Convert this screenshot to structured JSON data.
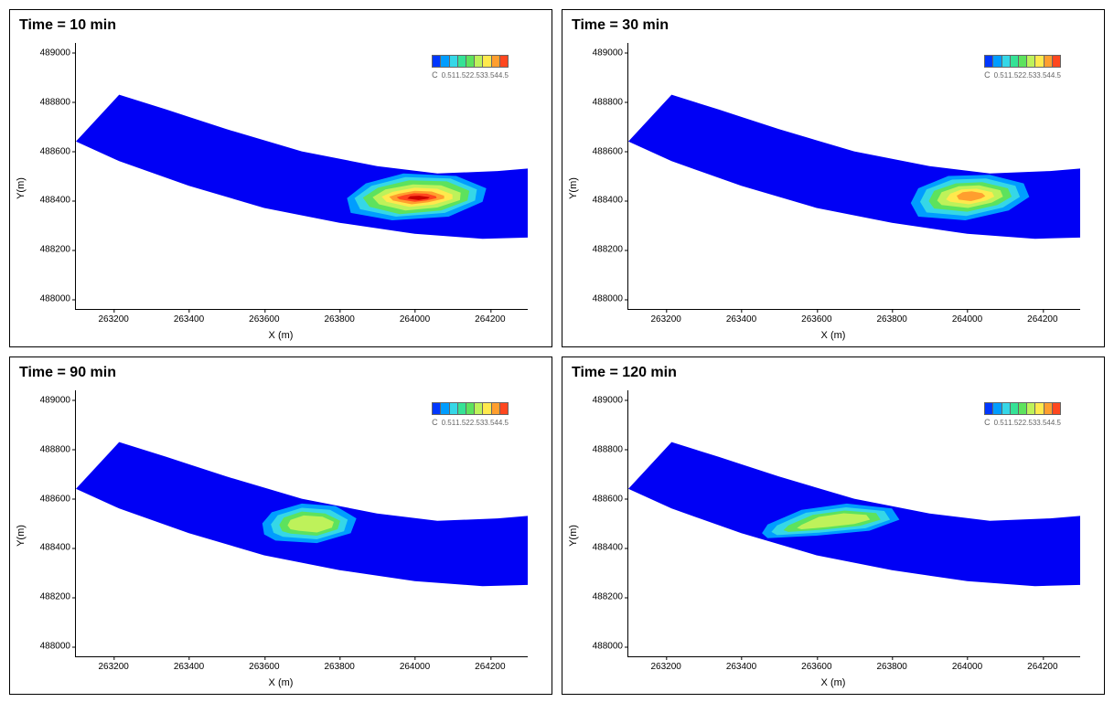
{
  "grid_layout": {
    "rows": 2,
    "cols": 2
  },
  "panels": [
    {
      "id": "p0",
      "time_label": "Time = 10 min"
    },
    {
      "id": "p1",
      "time_label": "Time = 30 min"
    },
    {
      "id": "p2",
      "time_label": "Time = 90 min"
    },
    {
      "id": "p3",
      "time_label": "Time = 120 min"
    }
  ],
  "axes": {
    "xlabel": "X (m)",
    "ylabel": "Y(m)",
    "xlim": [
      263100,
      264300
    ],
    "ylim": [
      487960,
      489040
    ],
    "xticks": [
      263200,
      263400,
      263600,
      263800,
      264000,
      264200
    ],
    "yticks": [
      488000,
      488200,
      488400,
      488600,
      488800,
      489000
    ]
  },
  "river_band": {
    "fill": "#0000f5",
    "points": [
      [
        263100,
        488640
      ],
      [
        263215,
        488830
      ],
      [
        263340,
        488770
      ],
      [
        263500,
        488690
      ],
      [
        263700,
        488600
      ],
      [
        263900,
        488540
      ],
      [
        264060,
        488510
      ],
      [
        264220,
        488520
      ],
      [
        264300,
        488530
      ],
      [
        264300,
        488250
      ],
      [
        264180,
        488245
      ],
      [
        264000,
        488265
      ],
      [
        263800,
        488310
      ],
      [
        263600,
        488370
      ],
      [
        263400,
        488460
      ],
      [
        263215,
        488560
      ],
      [
        263100,
        488640
      ]
    ]
  },
  "legend": {
    "label": "C",
    "values": [
      "0.5",
      "1",
      "1.5",
      "2",
      "2.5",
      "3",
      "3.5",
      "4",
      "4.5"
    ],
    "colors": [
      "#0037ff",
      "#009dff",
      "#35d7e7",
      "#35e296",
      "#5de25d",
      "#bef25a",
      "#ffe94d",
      "#ff9e2e",
      "#ff471f"
    ]
  },
  "hotspots": {
    "p0": [
      {
        "c": "#009dff",
        "points": [
          [
            263830,
            488350
          ],
          [
            263940,
            488320
          ],
          [
            264090,
            488335
          ],
          [
            264180,
            488395
          ],
          [
            264190,
            488450
          ],
          [
            264110,
            488500
          ],
          [
            263970,
            488510
          ],
          [
            263870,
            488470
          ],
          [
            263820,
            488410
          ]
        ]
      },
      {
        "c": "#35d7e7",
        "points": [
          [
            263855,
            488365
          ],
          [
            263950,
            488335
          ],
          [
            264080,
            488350
          ],
          [
            264160,
            488400
          ],
          [
            264165,
            488445
          ],
          [
            264095,
            488490
          ],
          [
            263975,
            488495
          ],
          [
            263885,
            488460
          ],
          [
            263840,
            488410
          ]
        ]
      },
      {
        "c": "#5de25d",
        "points": [
          [
            263880,
            488375
          ],
          [
            263960,
            488345
          ],
          [
            264070,
            488360
          ],
          [
            264140,
            488400
          ],
          [
            264145,
            488440
          ],
          [
            264085,
            488478
          ],
          [
            263985,
            488482
          ],
          [
            263902,
            488452
          ],
          [
            263862,
            488412
          ]
        ]
      },
      {
        "c": "#bef25a",
        "points": [
          [
            263905,
            488385
          ],
          [
            263975,
            488360
          ],
          [
            264060,
            488372
          ],
          [
            264120,
            488402
          ],
          [
            264122,
            488432
          ],
          [
            264070,
            488462
          ],
          [
            263995,
            488466
          ],
          [
            263922,
            488445
          ],
          [
            263888,
            488414
          ]
        ]
      },
      {
        "c": "#ffe94d",
        "points": [
          [
            263925,
            488395
          ],
          [
            263985,
            488375
          ],
          [
            264050,
            488384
          ],
          [
            264100,
            488406
          ],
          [
            264100,
            488425
          ],
          [
            264060,
            488448
          ],
          [
            264000,
            488452
          ],
          [
            263942,
            488436
          ],
          [
            263912,
            488416
          ]
        ]
      },
      {
        "c": "#ff9e2e",
        "points": [
          [
            263942,
            488400
          ],
          [
            263992,
            488385
          ],
          [
            264036,
            488393
          ],
          [
            264078,
            488408
          ],
          [
            264078,
            488420
          ],
          [
            264045,
            488437
          ],
          [
            264000,
            488440
          ],
          [
            263958,
            488428
          ],
          [
            263932,
            488416
          ]
        ]
      },
      {
        "c": "#ff471f",
        "points": [
          [
            263960,
            488405
          ],
          [
            264000,
            488395
          ],
          [
            264030,
            488400
          ],
          [
            264058,
            488410
          ],
          [
            264056,
            488418
          ],
          [
            264032,
            488428
          ],
          [
            263998,
            488430
          ],
          [
            263972,
            488422
          ],
          [
            263952,
            488414
          ]
        ]
      },
      {
        "c": "#cc0000",
        "points": [
          [
            263980,
            488408
          ],
          [
            264010,
            488402
          ],
          [
            264035,
            488408
          ],
          [
            264040,
            488414
          ],
          [
            264012,
            488420
          ],
          [
            263988,
            488418
          ]
        ]
      }
    ],
    "p1": [
      {
        "c": "#009dff",
        "points": [
          [
            263870,
            488335
          ],
          [
            263995,
            488320
          ],
          [
            264110,
            488360
          ],
          [
            264165,
            488415
          ],
          [
            264150,
            488470
          ],
          [
            264060,
            488505
          ],
          [
            263950,
            488500
          ],
          [
            263870,
            488450
          ],
          [
            263850,
            488390
          ]
        ]
      },
      {
        "c": "#35d7e7",
        "points": [
          [
            263892,
            488352
          ],
          [
            263998,
            488338
          ],
          [
            264095,
            488372
          ],
          [
            264140,
            488415
          ],
          [
            264128,
            488460
          ],
          [
            264050,
            488490
          ],
          [
            263960,
            488485
          ],
          [
            263892,
            488445
          ],
          [
            263875,
            488395
          ]
        ]
      },
      {
        "c": "#5de25d",
        "points": [
          [
            263912,
            488368
          ],
          [
            264000,
            488355
          ],
          [
            264080,
            488382
          ],
          [
            264118,
            488416
          ],
          [
            264108,
            488450
          ],
          [
            264040,
            488475
          ],
          [
            263970,
            488470
          ],
          [
            263912,
            488440
          ],
          [
            263898,
            488398
          ]
        ]
      },
      {
        "c": "#bef25a",
        "points": [
          [
            263932,
            488382
          ],
          [
            264002,
            488370
          ],
          [
            264065,
            488392
          ],
          [
            264095,
            488416
          ],
          [
            264088,
            488442
          ],
          [
            264032,
            488462
          ],
          [
            263978,
            488458
          ],
          [
            263932,
            488434
          ],
          [
            263920,
            488400
          ]
        ]
      },
      {
        "c": "#ffe94d",
        "points": [
          [
            263955,
            488395
          ],
          [
            264005,
            488385
          ],
          [
            264050,
            488400
          ],
          [
            264072,
            488416
          ],
          [
            264066,
            488434
          ],
          [
            264025,
            488448
          ],
          [
            263985,
            488445
          ],
          [
            263955,
            488428
          ],
          [
            263944,
            488405
          ]
        ]
      },
      {
        "c": "#ff9e2e",
        "points": [
          [
            263978,
            488404
          ],
          [
            264010,
            488398
          ],
          [
            264036,
            488408
          ],
          [
            264048,
            488418
          ],
          [
            264040,
            488430
          ],
          [
            264012,
            488438
          ],
          [
            263988,
            488434
          ],
          [
            263972,
            488420
          ]
        ]
      }
    ],
    "p2": [
      {
        "c": "#009dff",
        "points": [
          [
            263630,
            488430
          ],
          [
            263740,
            488420
          ],
          [
            263830,
            488460
          ],
          [
            263845,
            488520
          ],
          [
            263790,
            488570
          ],
          [
            263700,
            488580
          ],
          [
            263620,
            488545
          ],
          [
            263595,
            488500
          ],
          [
            263600,
            488455
          ]
        ]
      },
      {
        "c": "#35d7e7",
        "points": [
          [
            263650,
            488445
          ],
          [
            263740,
            488435
          ],
          [
            263812,
            488468
          ],
          [
            263822,
            488515
          ],
          [
            263775,
            488555
          ],
          [
            263700,
            488563
          ],
          [
            263636,
            488533
          ],
          [
            263618,
            488496
          ],
          [
            263625,
            488462
          ]
        ]
      },
      {
        "c": "#5de25d",
        "points": [
          [
            263670,
            488458
          ],
          [
            263740,
            488450
          ],
          [
            263795,
            488476
          ],
          [
            263802,
            488510
          ],
          [
            263762,
            488540
          ],
          [
            263700,
            488548
          ],
          [
            263652,
            488523
          ],
          [
            263640,
            488494
          ],
          [
            263648,
            488468
          ]
        ]
      },
      {
        "c": "#bef25a",
        "points": [
          [
            263692,
            488470
          ],
          [
            263740,
            488463
          ],
          [
            263780,
            488482
          ],
          [
            263785,
            488506
          ],
          [
            263755,
            488527
          ],
          [
            263705,
            488532
          ],
          [
            263670,
            488514
          ],
          [
            263662,
            488492
          ],
          [
            263670,
            488476
          ]
        ]
      }
    ],
    "p3": [
      {
        "c": "#009dff",
        "points": [
          [
            263470,
            488440
          ],
          [
            263600,
            488450
          ],
          [
            263740,
            488470
          ],
          [
            263820,
            488515
          ],
          [
            263800,
            488560
          ],
          [
            263680,
            488580
          ],
          [
            263560,
            488555
          ],
          [
            263470,
            488495
          ],
          [
            263455,
            488460
          ]
        ]
      },
      {
        "c": "#35d7e7",
        "points": [
          [
            263495,
            488452
          ],
          [
            263605,
            488462
          ],
          [
            263730,
            488480
          ],
          [
            263795,
            488515
          ],
          [
            263780,
            488550
          ],
          [
            263678,
            488565
          ],
          [
            263572,
            488543
          ],
          [
            263495,
            488492
          ],
          [
            263480,
            488465
          ]
        ]
      },
      {
        "c": "#5de25d",
        "points": [
          [
            263525,
            488465
          ],
          [
            263615,
            488474
          ],
          [
            263715,
            488490
          ],
          [
            263770,
            488515
          ],
          [
            263758,
            488542
          ],
          [
            263675,
            488552
          ],
          [
            263590,
            488534
          ],
          [
            263525,
            488492
          ],
          [
            263512,
            488472
          ]
        ]
      },
      {
        "c": "#bef25a",
        "points": [
          [
            263560,
            488476
          ],
          [
            263625,
            488484
          ],
          [
            263700,
            488497
          ],
          [
            263742,
            488515
          ],
          [
            263732,
            488534
          ],
          [
            263672,
            488541
          ],
          [
            263606,
            488526
          ],
          [
            263560,
            488494
          ],
          [
            263548,
            488481
          ]
        ]
      }
    ]
  },
  "style": {
    "background": "#ffffff",
    "border_color": "#000000",
    "tick_fontsize": 10,
    "label_fontsize": 11,
    "title_fontsize": 16,
    "legend_fontsize": 8
  }
}
